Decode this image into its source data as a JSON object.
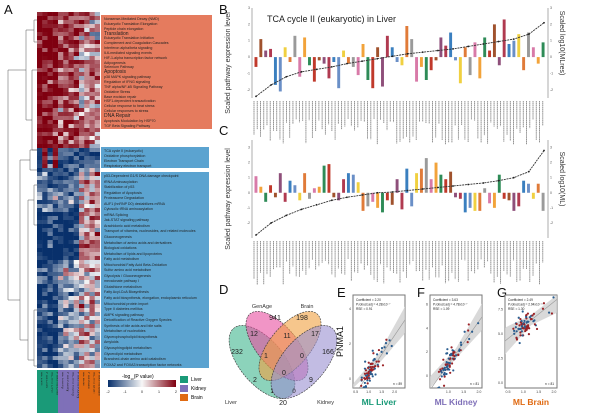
{
  "panels": {
    "a": "A",
    "b": "B",
    "c": "C",
    "d": "D",
    "e": "E",
    "f": "F",
    "g": "G"
  },
  "heatmap": {
    "type": "heatmap",
    "columns": [
      {
        "label": "ML Liver",
        "group": "Liver"
      },
      {
        "label": "FTM Liver",
        "group": "Liver"
      },
      {
        "label": "ML.rms Liver",
        "group": "Liver"
      },
      {
        "label": "FTM.rms Liver",
        "group": "Liver"
      },
      {
        "label": "ML Kidney",
        "group": "Kidney"
      },
      {
        "label": "FTM Kidney",
        "group": "Kidney"
      },
      {
        "label": "ML.rms Kidney",
        "group": "Kidney"
      },
      {
        "label": "FTM.rms Kidney",
        "group": "Kidney"
      },
      {
        "label": "ML Brain",
        "group": "Brain"
      },
      {
        "label": "FTM Brain",
        "group": "Brain"
      },
      {
        "label": "ML.rms Brain",
        "group": "Brain"
      },
      {
        "label": "FTM.rms Brain",
        "group": "Brain"
      }
    ],
    "colorbar": {
      "title": "-log10(P value)",
      "ticks": [
        "-2",
        "-1",
        "0",
        "1",
        "2"
      ],
      "low": "#08306b",
      "mid": "#f7f7f7",
      "high": "#7f0010"
    },
    "groups": [
      {
        "name": "Liver",
        "color": "#1a9a78"
      },
      {
        "name": "Kidney",
        "color": "#7f70b8"
      },
      {
        "name": "Brain",
        "color": "#e06a12"
      }
    ],
    "clusters": [
      {
        "color": "#e57b5e",
        "pathways": [
          {
            "t": "Nonsense-Mediated Decay (NMD)"
          },
          {
            "t": "Eukaryotic Translation Elongation"
          },
          {
            "t": "Peptide chain elongation"
          },
          {
            "t": "Translation",
            "big": true
          },
          {
            "t": "Eukaryotic Translation Initiation"
          },
          {
            "t": "Complement and Coagulation Cascades"
          },
          {
            "t": "Interferon alpha/beta signaling"
          },
          {
            "t": "IL6-mediated signaling events"
          },
          {
            "t": "HIF-1-alpha transcription factor network"
          },
          {
            "t": "Adipogenesis"
          },
          {
            "t": "Selenium Pathway"
          },
          {
            "t": "Apoptosis",
            "big": true
          },
          {
            "t": "p38 MAPK signaling pathway"
          },
          {
            "t": "Regulation of IFNG signaling"
          },
          {
            "t": "TNF alpha/NF-kB Signaling Pathway"
          },
          {
            "t": "Oxidative Stress"
          },
          {
            "t": "Base excision repair"
          },
          {
            "t": "HSF1-dependent transactivation"
          },
          {
            "t": "Cellular response to heat stress"
          },
          {
            "t": "Cellular responses to stress"
          },
          {
            "t": "DNA Repair",
            "big": true
          },
          {
            "t": "Apoptosis Modulation by HSP70"
          },
          {
            "t": "TGF Beta Signaling Pathway"
          }
        ]
      },
      {
        "color": "#5ba3d0",
        "pathways": [
          {
            "t": "TCA cycle II (eukaryotic)"
          },
          {
            "t": "Oxidative phosphorylation"
          },
          {
            "t": "Electron Transport Chain"
          },
          {
            "t": "Respiratory electron transport"
          }
        ]
      },
      {
        "color": "#5ba3d0",
        "pathways": [
          {
            "t": "p53-Dependent G1/S DNA damage checkpoint"
          },
          {
            "t": "tRNA Aminoacylation"
          },
          {
            "t": "Stabilization of p53"
          },
          {
            "t": "Regulation of Apoptosis"
          },
          {
            "t": "Proteasome Degradation"
          },
          {
            "t": "AUF1 (hnRNP D0) destabilizes mRNA"
          },
          {
            "t": "Cytosolic tRNA aminoacylation"
          },
          {
            "t": "mRNA Splicing"
          },
          {
            "t": "Jak-STAT signaling pathway"
          },
          {
            "t": "Arachidonic acid metabolism"
          },
          {
            "t": "Transport of vitamins, nucleosides, and related molecules"
          },
          {
            "t": "Gluconeogenesis"
          },
          {
            "t": "Metabolism of amino acids and derivatives"
          },
          {
            "t": "Biological oxidations"
          },
          {
            "t": "Metabolism of lipids and lipoproteins"
          },
          {
            "t": "Fatty acid metabolism"
          },
          {
            "t": "Mitochondrial Fatty Acid Beta-Oxidation"
          },
          {
            "t": "Sulfur amino acid metabolism"
          },
          {
            "t": "Glycolysis / Gluconeogenesis"
          },
          {
            "t": "mevalonate pathway I"
          },
          {
            "t": "Glutathione metabolism"
          },
          {
            "t": "Fatty Acyl-CoA Biosynthesis"
          },
          {
            "t": "Fatty acid biosynthesis, elongation, endoplasmic reticulum"
          },
          {
            "t": "Mitochondrial protein import"
          },
          {
            "t": "Type II diabetes mellitus"
          },
          {
            "t": "AMPK signaling pathway"
          },
          {
            "t": "Detoxification of Reactive Oxygen Species"
          },
          {
            "t": "Synthesis of bile acids and bile salts"
          },
          {
            "t": "Metabolism of nucleotides"
          },
          {
            "t": "Glycerophospholipid biosynthesis"
          },
          {
            "t": "Amyloids"
          },
          {
            "t": "Glycosphingolipid metabolism"
          },
          {
            "t": "Glycerolipid metabolism"
          },
          {
            "t": "Branched-chain amino acid catabolism"
          },
          {
            "t": "FOXA2 and FOXA3 transcription factor networks"
          }
        ]
      }
    ]
  },
  "chart_data": [
    {
      "type": "bar",
      "panel": "B",
      "title": "TCA cycle II (eukaryotic) in Liver",
      "ylabel": "Scaled pathway expression level",
      "ylabel_right": "Scaled log10(MLres)",
      "ylim": [
        -2.5,
        3
      ],
      "yticks": [
        "3",
        "2",
        "1",
        "0",
        "-1",
        "-2"
      ],
      "values": [
        -0.6,
        1.1,
        0.4,
        0.5,
        -1.7,
        -2.1,
        0.6,
        -0.3,
        1.3,
        -1.2,
        1.2,
        -0.5,
        -1.5,
        -0.2,
        -0.4,
        -1.3,
        -0.3,
        -1.9,
        0.4,
        -0.4,
        -0.6,
        -1.1,
        0.8,
        -1.4,
        -1.9,
        0.6,
        -1.8,
        1.3,
        0.6,
        -0.3,
        -0.5,
        1.9,
        1.1,
        -1.5,
        -0.6,
        -1.4,
        -0.8,
        -0.2,
        1.2,
        0.7,
        1.5,
        -0.2,
        -1.6,
        0.6,
        -1.1,
        0.9,
        -1.3,
        1.2,
        0.4,
        2.0,
        -0.5,
        2.3,
        0.8,
        1.0,
        1.4,
        -0.8,
        1.5,
        0.6,
        -0.4,
        0.9
      ],
      "line": [
        -2.4,
        -1.7,
        -1.2,
        -0.9,
        -0.75,
        -0.6,
        -0.4,
        -0.25,
        -0.1,
        0.05,
        0.2,
        0.3,
        0.4,
        0.5,
        0.65,
        0.8,
        0.95,
        1.1,
        1.4,
        2.1
      ]
    },
    {
      "type": "bar",
      "panel": "C",
      "title": "",
      "ylabel": "Scaled pathway expression level",
      "ylabel_right": "Scaled log10(ML)",
      "ylim": [
        -3,
        3.5
      ],
      "yticks": [
        "3",
        "2",
        "1",
        "0",
        "-1",
        "-2"
      ],
      "values": [
        1.1,
        0.4,
        -0.6,
        0.5,
        -0.3,
        1.3,
        -0.6,
        0.8,
        0.5,
        -0.5,
        1.3,
        -0.4,
        0.3,
        0.4,
        1.8,
        1.9,
        -0.3,
        -0.5,
        0.9,
        1.3,
        1.2,
        0.7,
        -1.2,
        -0.9,
        -0.6,
        -1.0,
        -1.3,
        -0.5,
        -0.8,
        0.9,
        -1.1,
        1.6,
        -0.9,
        1.3,
        1.6,
        2.3,
        0.9,
        2.0,
        1.2,
        0.9,
        1.4,
        -0.3,
        -0.4,
        -1.3,
        -1.0,
        -1.2,
        -1.2,
        0.3,
        -0.7,
        -1.0,
        1.2,
        -0.4,
        -0.5,
        -1.2,
        -0.9,
        0.8,
        0.6,
        -0.4,
        0.6,
        -1.2
      ],
      "line": [
        -2.8,
        -2.0,
        -1.5,
        -1.1,
        -0.8,
        -0.5,
        -0.3,
        -0.15,
        0,
        0.05,
        0.15,
        0.25,
        0.35,
        0.45,
        0.55,
        0.65,
        0.8,
        1.0,
        1.4,
        2.8
      ]
    },
    {
      "type": "venn",
      "panel": "D",
      "sets": [
        {
          "name": "Liver",
          "color": "#3fb58e"
        },
        {
          "name": "GenAge",
          "color": "#e84fa0"
        },
        {
          "name": "Brain",
          "color": "#f0a040"
        },
        {
          "name": "Kidney",
          "color": "#9a8fd0"
        }
      ],
      "counts": {
        "Liver": "232",
        "GenAge": "941",
        "Brain": "198",
        "Kidney": "166",
        "Liver&GenAge": "12",
        "GenAge&Brain": "11",
        "Brain&Kidney": "17",
        "Liver&GenAge&Brain": "1",
        "GenAge&Brain&Kidney": "0",
        "all": "0",
        "Liver&Brain": "2",
        "GenAge&Kidney": "9",
        "Liver&GenAge&Kidney": "1",
        "Liver&Brain&Kidney": "0",
        "Liver&Kidney": "20"
      }
    },
    {
      "type": "scatter",
      "panel": "E",
      "xlabel": "ML Liver",
      "xlabel_color": "#1a9a78",
      "ylabel": "PNMA1",
      "xticks": [
        "0.5",
        "1.0",
        "1.5",
        "2.0"
      ],
      "yticks": [
        "0",
        "2",
        "4"
      ],
      "xlim": [
        0.4,
        2.4
      ],
      "ylim": [
        -0.5,
        4.8
      ],
      "stats": [
        "Coefficient = 2.20",
        "P.robust.adj = 4.28x10⁻⁷",
        "RSE = 0.91"
      ],
      "n": "n = 89",
      "slope": 2.2,
      "intercept": -1.9
    },
    {
      "type": "scatter",
      "panel": "F",
      "xlabel": "ML Kidney",
      "xlabel_color": "#7f70b8",
      "ylabel": "",
      "xticks": [
        "1.0",
        "1.5",
        "2.0"
      ],
      "yticks": [
        "0",
        "2",
        "4",
        "6"
      ],
      "xlim": [
        0.4,
        2.1
      ],
      "ylim": [
        -1,
        6.8
      ],
      "stats": [
        "Coefficient = 3.63",
        "P.robust.adj = 4.78x10⁻⁷",
        "RSE = 1.09"
      ],
      "n": "n = 81",
      "slope": 3.6,
      "intercept": -2.6
    },
    {
      "type": "scatter",
      "panel": "G",
      "xlabel": "ML Brain",
      "xlabel_color": "#e06a12",
      "ylabel": "",
      "xticks": [
        "0.5",
        "1.0",
        "1.5",
        "2.0"
      ],
      "yticks": [
        "0.0",
        "2.5",
        "5.0",
        "7.5"
      ],
      "xlim": [
        0.4,
        2.1
      ],
      "ylim": [
        -0.5,
        9
      ],
      "stats": [
        "Coefficient = 2.49",
        "P.robust.adj = 2.94x10⁻⁶",
        "RSE = 1.30"
      ],
      "n": "n = 81",
      "slope": 2.5,
      "intercept": 3.3
    }
  ]
}
